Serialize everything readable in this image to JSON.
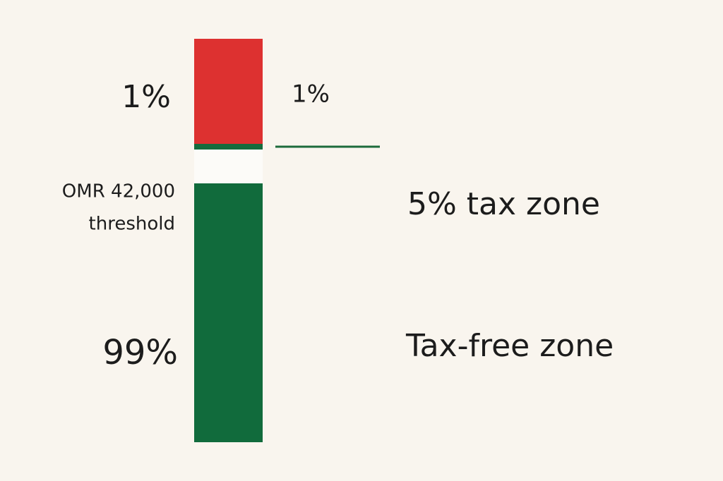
{
  "bar": {
    "top_share": "1%",
    "bottom_share": "99%"
  },
  "marker": {
    "label": "1%"
  },
  "threshold": {
    "lines": [
      "OMR 42,000",
      "threshold"
    ]
  },
  "zones": {
    "taxed": "5% tax zone",
    "free": "Tax-free zone"
  }
}
